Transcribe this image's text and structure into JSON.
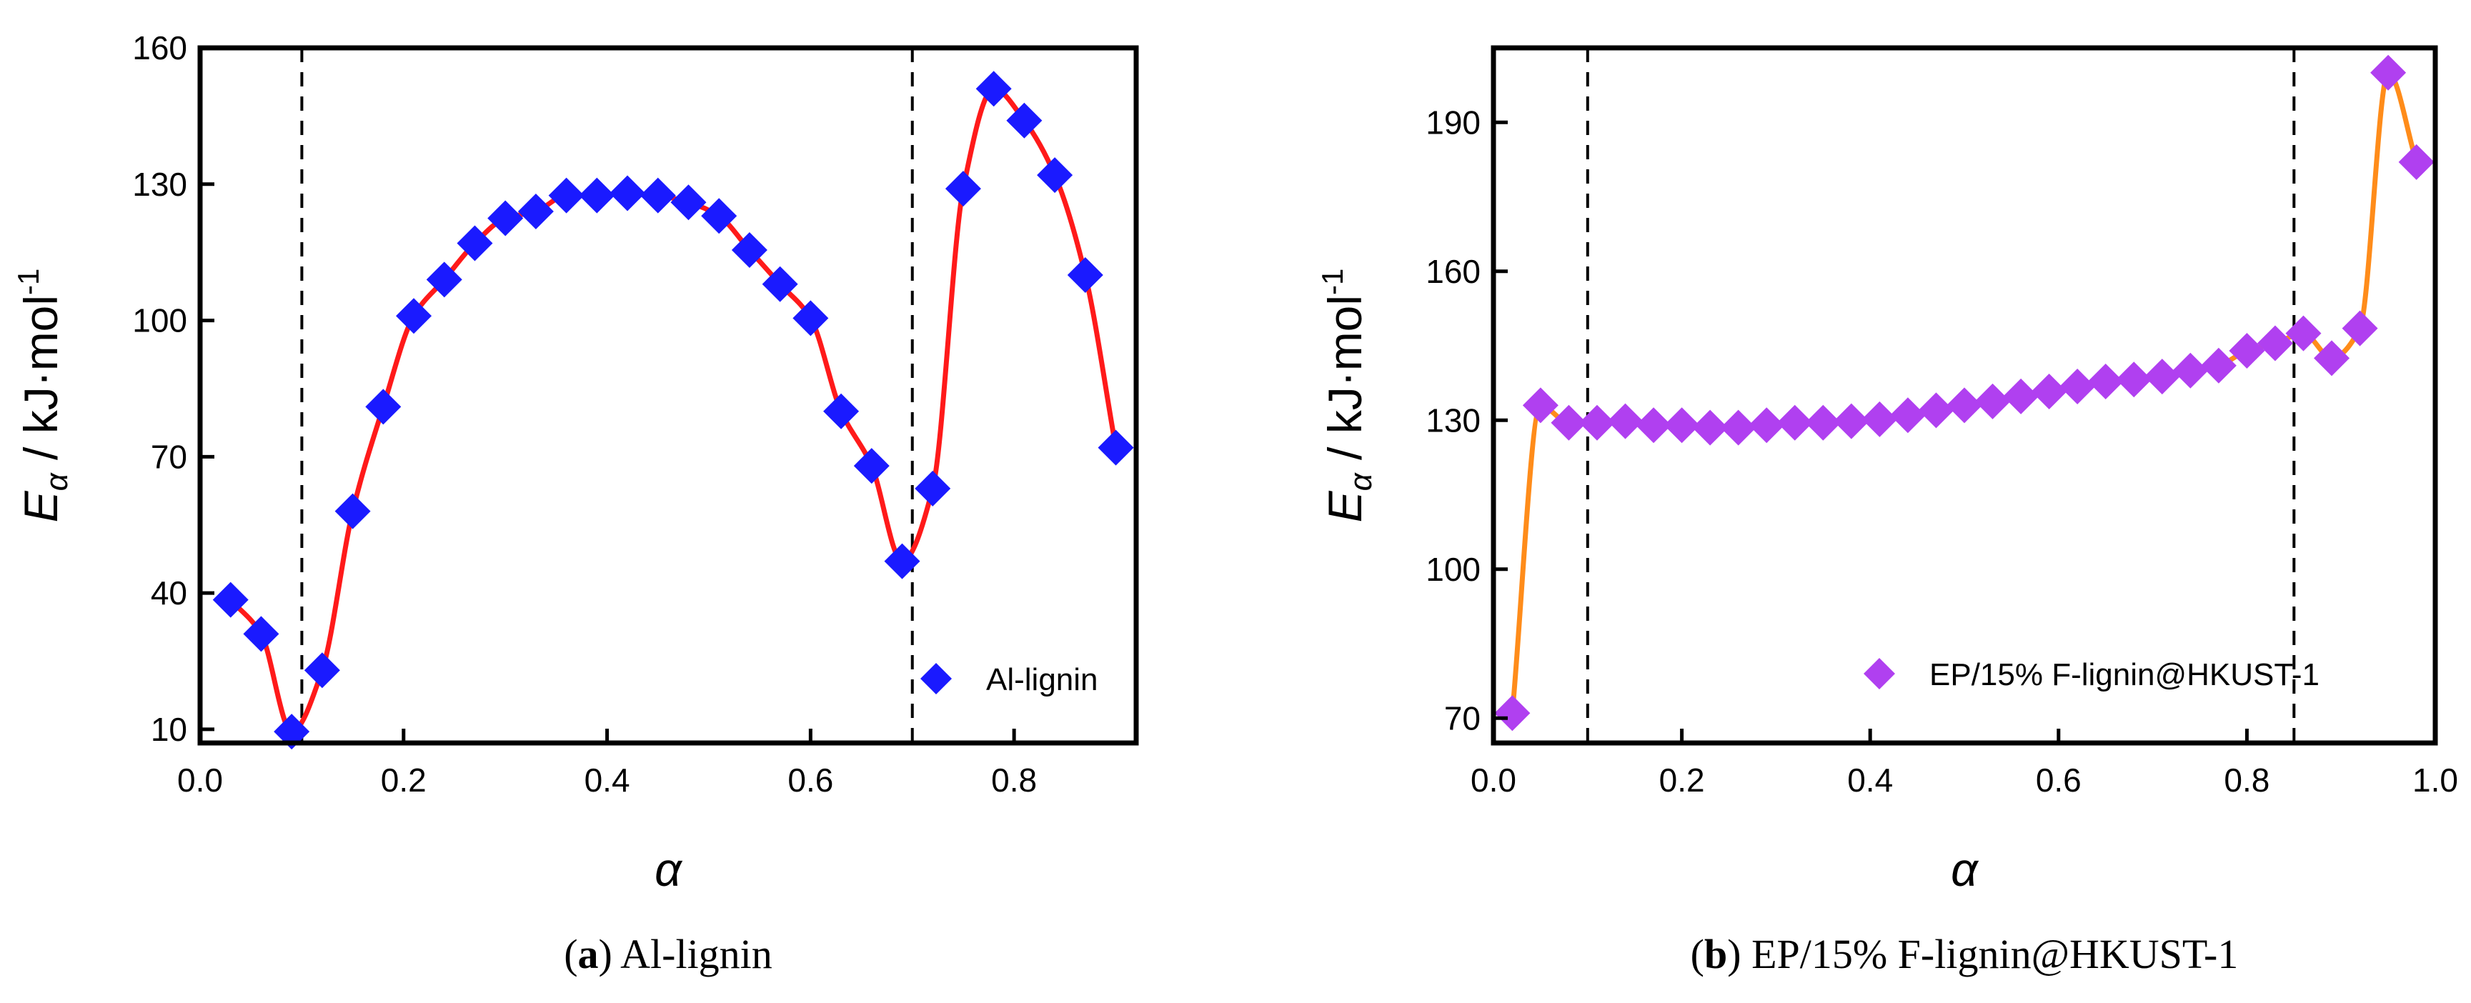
{
  "chart_data": [
    {
      "type": "scatter",
      "title": "",
      "xlabel": "α",
      "ylabel_main": "E",
      "ylabel_sub": "α",
      "ylabel_unit": " / kJ·mol",
      "ylabel_exp": "-1",
      "xlim": [
        0.0,
        0.92
      ],
      "ylim": [
        7,
        160
      ],
      "xticks": [
        0.0,
        0.2,
        0.4,
        0.6,
        0.8
      ],
      "xtick_labels": [
        "0.0",
        "0.2",
        "0.4",
        "0.6",
        "0.8"
      ],
      "yticks": [
        10,
        40,
        70,
        100,
        130,
        160
      ],
      "ytick_labels": [
        "10",
        "40",
        "70",
        "100",
        "130",
        "160"
      ],
      "dashed_lines_x": [
        0.1,
        0.7
      ],
      "legend": {
        "label": "Al-lignin",
        "position": "bottom-right",
        "marker_color": "#1a1aff"
      },
      "caption": {
        "tag": "a",
        "text": "Al-lignin"
      },
      "series": [
        {
          "name": "Al-lignin",
          "marker": "diamond",
          "marker_color": "#1a1aff",
          "line_color": "#ff1a1a",
          "x": [
            0.03,
            0.06,
            0.09,
            0.12,
            0.15,
            0.18,
            0.21,
            0.24,
            0.27,
            0.3,
            0.33,
            0.36,
            0.39,
            0.42,
            0.45,
            0.48,
            0.51,
            0.54,
            0.57,
            0.6,
            0.63,
            0.66,
            0.69,
            0.72,
            0.75,
            0.78,
            0.81,
            0.84,
            0.87,
            0.9
          ],
          "y": [
            38.5,
            31,
            9.5,
            23,
            58,
            81,
            101,
            109,
            117,
            122.5,
            124,
            127.5,
            127.5,
            128,
            127.5,
            126,
            123,
            115.5,
            108,
            100.5,
            80,
            68,
            47,
            63,
            129,
            151,
            144,
            132,
            110,
            72
          ]
        }
      ]
    },
    {
      "type": "scatter",
      "title": "",
      "xlabel": "α",
      "ylabel_main": "E",
      "ylabel_sub": "α",
      "ylabel_unit": " / kJ·mol",
      "ylabel_exp": "-1",
      "xlim": [
        0.0,
        1.0
      ],
      "ylim": [
        65,
        205
      ],
      "xticks": [
        0.0,
        0.2,
        0.4,
        0.6,
        0.8,
        1.0
      ],
      "xtick_labels": [
        "0.0",
        "0.2",
        "0.4",
        "0.6",
        "0.8",
        "1.0"
      ],
      "yticks": [
        70,
        100,
        130,
        160,
        190
      ],
      "ytick_labels": [
        "70",
        "100",
        "130",
        "160",
        "190"
      ],
      "dashed_lines_x": [
        0.1,
        0.85
      ],
      "legend": {
        "label": "EP/15% F-lignin@HKUST-1",
        "position": "bottom-right",
        "marker_color": "#b040f0"
      },
      "caption": {
        "tag": "b",
        "text": "EP/15% F-lignin@HKUST-1"
      },
      "series": [
        {
          "name": "EP/15% F-lignin@HKUST-1",
          "marker": "diamond",
          "marker_color": "#b040f0",
          "line_color": "#ff8c1a",
          "x": [
            0.02,
            0.05,
            0.08,
            0.11,
            0.14,
            0.17,
            0.2,
            0.23,
            0.26,
            0.29,
            0.32,
            0.35,
            0.38,
            0.41,
            0.44,
            0.47,
            0.5,
            0.53,
            0.56,
            0.59,
            0.62,
            0.65,
            0.68,
            0.71,
            0.74,
            0.77,
            0.8,
            0.83,
            0.86,
            0.89,
            0.92,
            0.95,
            0.98
          ],
          "y": [
            71,
            133,
            129.5,
            129.5,
            129.8,
            129,
            129,
            128.5,
            128.5,
            129,
            129.5,
            129.5,
            129.8,
            130.2,
            131,
            132,
            133,
            133.8,
            134.8,
            135.8,
            136.8,
            137.8,
            138.2,
            138.8,
            140,
            141,
            144,
            145.5,
            147.5,
            142.5,
            148.5,
            200,
            182
          ]
        }
      ]
    }
  ]
}
